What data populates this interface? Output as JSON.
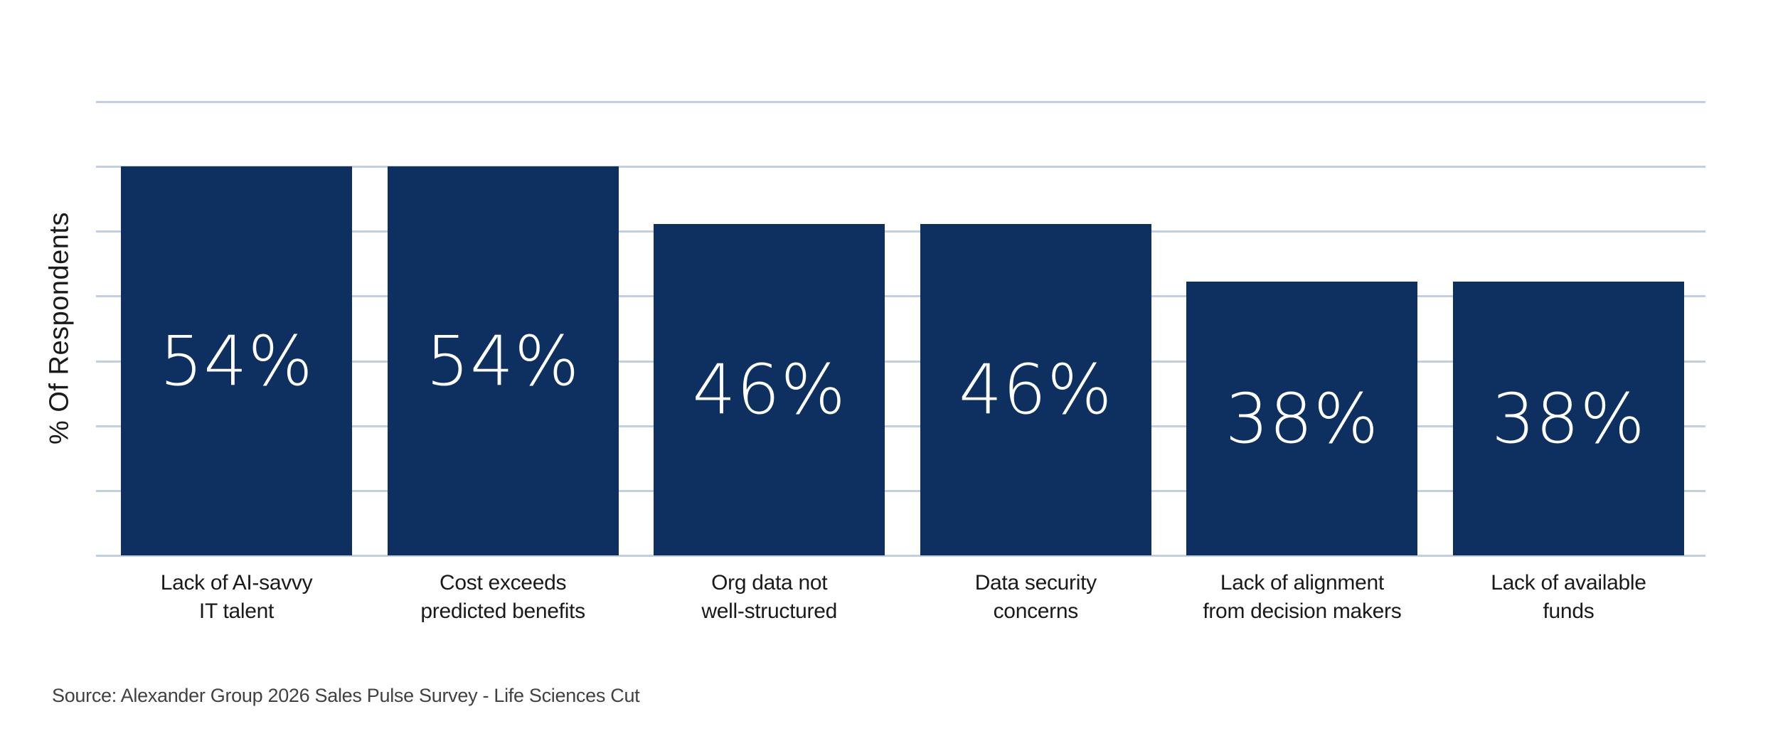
{
  "chart_data": {
    "type": "bar",
    "title": "",
    "xlabel": "",
    "ylabel": "% Of Respondents",
    "ylim": [
      0,
      63
    ],
    "gridline_count": 8,
    "grid": true,
    "legend": "none",
    "categories": [
      "Lack of AI-savvy IT talent",
      "Cost exceeds predicted benefits",
      "Org data not well-structured",
      "Data security concerns",
      "Lack of alignment from decision makers",
      "Lack of available funds"
    ],
    "values": [
      54,
      54,
      46,
      46,
      38,
      38
    ],
    "bars": [
      {
        "label_line1": "Lack of AI-savvy",
        "label_line2": "IT talent",
        "value": 54,
        "value_label": "54%"
      },
      {
        "label_line1": "Cost exceeds",
        "label_line2": "predicted benefits",
        "value": 54,
        "value_label": "54%"
      },
      {
        "label_line1": "Org data not",
        "label_line2": "well-structured",
        "value": 46,
        "value_label": "46%"
      },
      {
        "label_line1": "Data security",
        "label_line2": "concerns",
        "value": 46,
        "value_label": "46%"
      },
      {
        "label_line1": "Lack of alignment",
        "label_line2": "from decision makers",
        "value": 38,
        "value_label": "38%"
      },
      {
        "label_line1": "Lack of available",
        "label_line2": "funds",
        "value": 38,
        "value_label": "38%"
      }
    ]
  },
  "source_note": "Source: Alexander Group 2026 Sales Pulse Survey - Life Sciences Cut",
  "colors": {
    "bar": "#0d3060",
    "gridline": "#c2cfe2",
    "value_label": "#ffffff",
    "category_label": "#1a1a1a",
    "source_text": "#414141",
    "background": "#ffffff"
  }
}
